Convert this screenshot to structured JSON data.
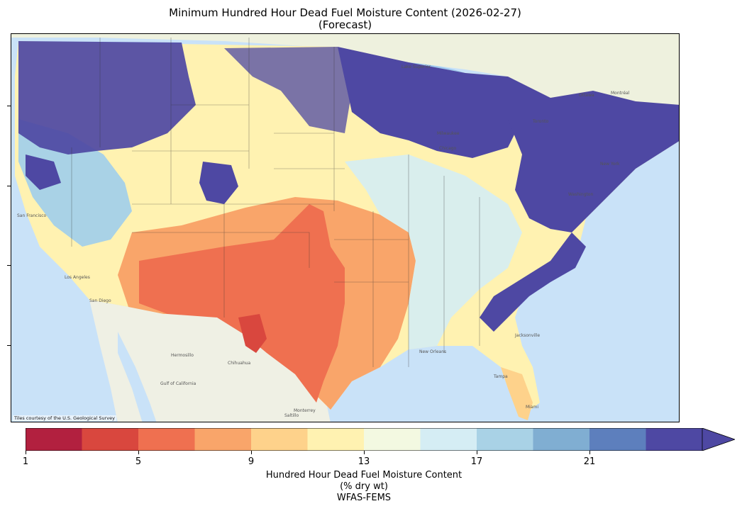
{
  "title_line1": "Minimum Hundred Hour Dead Fuel Moisture Content (2026-02-27)",
  "title_line2": "(Forecast)",
  "attribution": "Tiles courtesy of the U.S. Geological Survey",
  "colorbar": {
    "colors": [
      "#b2203f",
      "#d9473e",
      "#ef7050",
      "#f9a56a",
      "#fed28b",
      "#fff2b1",
      "#f3f9e1",
      "#d5edf4",
      "#a9d2e6",
      "#80aed2",
      "#5d7fbd",
      "#4e48a3"
    ],
    "tick_labels": [
      "1",
      "5",
      "9",
      "13",
      "17",
      "21"
    ],
    "label_line1": "Hundred Hour Dead Fuel Moisture Content",
    "label_line2": "(% dry wt)",
    "label_line3": "WFAS-FEMS"
  },
  "map_labels": {
    "lake_superior": "Lake Superior",
    "ottawa": "Ottawa",
    "montreal": "Montréal",
    "toronto": "Toronto",
    "milwaukee": "Milwaukee",
    "chicago": "Chicago",
    "san_francisco": "San Francisco",
    "los_angeles": "Los Angeles",
    "san_diego": "San Diego",
    "hermosillo": "Hermosillo",
    "chihuahua": "Chihuahua",
    "monterrey": "Monterrey",
    "gulf_of_california": "Gulf of California",
    "new_orleans": "New Orleans",
    "jacksonville": "Jacksonville",
    "tampa": "Tampa",
    "miami": "Miami",
    "new_york": "New York",
    "washington": "Washington",
    "saltillo": "Saltillo"
  }
}
